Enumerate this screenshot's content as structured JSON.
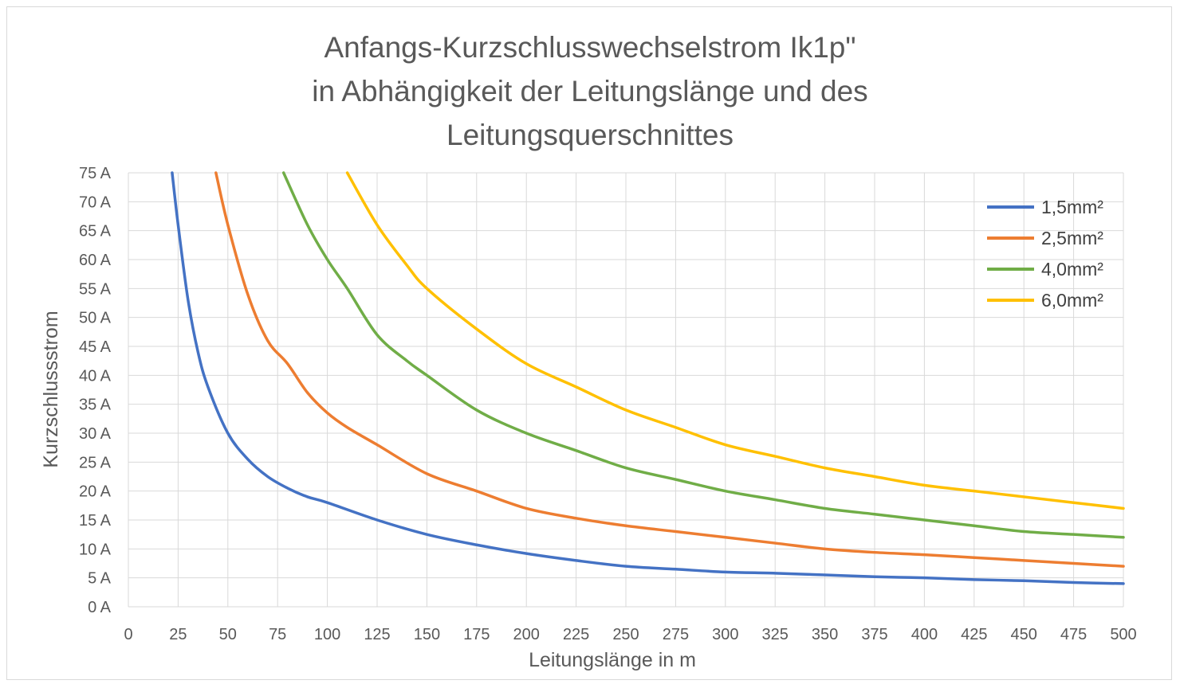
{
  "chart_data": {
    "type": "line",
    "title_lines": [
      "Anfangs-Kurzschlusswechselstrom Ik1p\"",
      "in Abhängigkeit der Leitungslänge und des",
      "Leitungsquerschnittes"
    ],
    "xlabel": "Leitungslänge in m",
    "ylabel": "Kurzschlussstrom",
    "xlim": [
      0,
      500
    ],
    "ylim": [
      0,
      75
    ],
    "x_ticks": [
      "0",
      "25",
      "50",
      "75",
      "100",
      "125",
      "150",
      "175",
      "200",
      "225",
      "250",
      "275",
      "300",
      "325",
      "350",
      "375",
      "400",
      "425",
      "450",
      "475",
      "500"
    ],
    "x_tick_values": [
      0,
      25,
      50,
      75,
      100,
      125,
      150,
      175,
      200,
      225,
      250,
      275,
      300,
      325,
      350,
      375,
      400,
      425,
      450,
      475,
      500
    ],
    "y_ticks": [
      "0 A",
      "5 A",
      "10 A",
      "15 A",
      "20 A",
      "25 A",
      "30 A",
      "35 A",
      "40 A",
      "45 A",
      "50 A",
      "55 A",
      "60 A",
      "65 A",
      "70 A",
      "75 A"
    ],
    "y_tick_values": [
      0,
      5,
      10,
      15,
      20,
      25,
      30,
      35,
      40,
      45,
      50,
      55,
      60,
      65,
      70,
      75
    ],
    "grid": true,
    "legend_position": "top-right",
    "series": [
      {
        "name": "1,5mm²",
        "color": "#4472C4",
        "points": [
          [
            22,
            75
          ],
          [
            25,
            66
          ],
          [
            30,
            53
          ],
          [
            35,
            44
          ],
          [
            40,
            38
          ],
          [
            50,
            30
          ],
          [
            60,
            25.5
          ],
          [
            70,
            22.5
          ],
          [
            80,
            20.5
          ],
          [
            90,
            19
          ],
          [
            100,
            18
          ],
          [
            125,
            15
          ],
          [
            150,
            12.5
          ],
          [
            175,
            10.7
          ],
          [
            200,
            9.2
          ],
          [
            225,
            8
          ],
          [
            250,
            7
          ],
          [
            275,
            6.5
          ],
          [
            300,
            6
          ],
          [
            325,
            5.8
          ],
          [
            350,
            5.5
          ],
          [
            375,
            5.2
          ],
          [
            400,
            5
          ],
          [
            425,
            4.7
          ],
          [
            450,
            4.5
          ],
          [
            475,
            4.2
          ],
          [
            500,
            4
          ]
        ]
      },
      {
        "name": "2,5mm²",
        "color": "#ED7D31",
        "points": [
          [
            44,
            75
          ],
          [
            50,
            66
          ],
          [
            60,
            54
          ],
          [
            70,
            46
          ],
          [
            80,
            42
          ],
          [
            90,
            37
          ],
          [
            100,
            33.5
          ],
          [
            110,
            31
          ],
          [
            125,
            28
          ],
          [
            150,
            23
          ],
          [
            175,
            20
          ],
          [
            200,
            17
          ],
          [
            225,
            15.3
          ],
          [
            250,
            14
          ],
          [
            275,
            13
          ],
          [
            300,
            12
          ],
          [
            325,
            11
          ],
          [
            350,
            10
          ],
          [
            375,
            9.4
          ],
          [
            400,
            9
          ],
          [
            425,
            8.5
          ],
          [
            450,
            8
          ],
          [
            475,
            7.5
          ],
          [
            500,
            7
          ]
        ]
      },
      {
        "name": "4,0mm²",
        "color": "#70AD47",
        "points": [
          [
            78,
            75
          ],
          [
            90,
            66
          ],
          [
            100,
            60
          ],
          [
            110,
            55
          ],
          [
            125,
            47
          ],
          [
            140,
            42.5
          ],
          [
            150,
            40
          ],
          [
            175,
            34
          ],
          [
            200,
            30
          ],
          [
            225,
            27
          ],
          [
            250,
            24
          ],
          [
            275,
            22
          ],
          [
            300,
            20
          ],
          [
            325,
            18.5
          ],
          [
            350,
            17
          ],
          [
            375,
            16
          ],
          [
            400,
            15
          ],
          [
            425,
            14
          ],
          [
            450,
            13
          ],
          [
            475,
            12.5
          ],
          [
            500,
            12
          ]
        ]
      },
      {
        "name": "6,0mm²",
        "color": "#FFC000",
        "points": [
          [
            110,
            75
          ],
          [
            125,
            66
          ],
          [
            140,
            59
          ],
          [
            150,
            55
          ],
          [
            175,
            48
          ],
          [
            200,
            42
          ],
          [
            225,
            38
          ],
          [
            250,
            34
          ],
          [
            275,
            31
          ],
          [
            300,
            28
          ],
          [
            325,
            26
          ],
          [
            350,
            24
          ],
          [
            375,
            22.5
          ],
          [
            400,
            21
          ],
          [
            425,
            20
          ],
          [
            450,
            19
          ],
          [
            475,
            18
          ],
          [
            500,
            17
          ]
        ]
      }
    ]
  }
}
